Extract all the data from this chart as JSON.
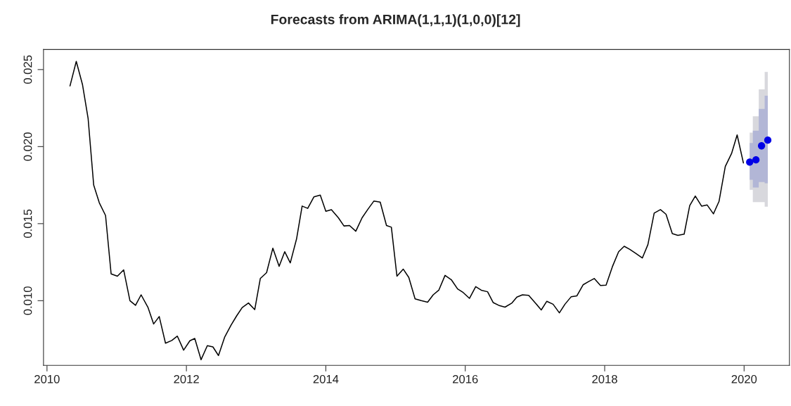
{
  "chart_data": {
    "type": "line",
    "title": "Forecasts from ARIMA(1,1,1)(1,0,0)[12]",
    "xlim": [
      2009.95,
      2020.65
    ],
    "xticks": [
      2010,
      2012,
      2014,
      2016,
      2018,
      2020
    ],
    "ylim": [
      0.0058,
      0.0263
    ],
    "yticks": [
      {
        "value": 0.01,
        "label": "0.010"
      },
      0.015,
      {
        "value": 0.02,
        "label": "0.020"
      },
      0.025
    ],
    "grid": false,
    "series": [
      {
        "color": "#000000",
        "marker": "none",
        "line_style": "solid",
        "x": [
          2010.33,
          2010.42,
          2010.51,
          2010.59,
          2010.67,
          2010.75,
          2010.84,
          2010.92,
          2011.01,
          2011.1,
          2011.19,
          2011.27,
          2011.35,
          2011.45,
          2011.53,
          2011.61,
          2011.7,
          2011.79,
          2011.87,
          2011.96,
          2012.05,
          2012.12,
          2012.21,
          2012.3,
          2012.38,
          2012.46,
          2012.55,
          2012.64,
          2012.72,
          2012.8,
          2012.89,
          2012.98,
          2013.06,
          2013.15,
          2013.24,
          2013.33,
          2013.41,
          2013.49,
          2013.58,
          2013.66,
          2013.74,
          2013.83,
          2013.92,
          2014.0,
          2014.08,
          2014.18,
          2014.26,
          2014.34,
          2014.43,
          2014.52,
          2014.6,
          2014.69,
          2014.78,
          2014.87,
          2014.94,
          2015.02,
          2015.11,
          2015.19,
          2015.28,
          2015.37,
          2015.46,
          2015.54,
          2015.62,
          2015.71,
          2015.8,
          2015.89,
          2015.97,
          2016.06,
          2016.15,
          2016.23,
          2016.32,
          2016.4,
          2016.48,
          2016.57,
          2016.67,
          2016.74,
          2016.82,
          2016.91,
          2017.0,
          2017.09,
          2017.17,
          2017.26,
          2017.35,
          2017.43,
          2017.52,
          2017.6,
          2017.69,
          2017.77,
          2017.85,
          2017.94,
          2018.02,
          2018.11,
          2018.2,
          2018.28,
          2018.36,
          2018.45,
          2018.54,
          2018.62,
          2018.71,
          2018.8,
          2018.88,
          2018.97,
          2019.05,
          2019.14,
          2019.22,
          2019.3,
          2019.39,
          2019.47,
          2019.56,
          2019.64,
          2019.73,
          2019.82,
          2019.9,
          2019.99
        ],
        "values": [
          0.02394,
          0.02553,
          0.02401,
          0.02182,
          0.0175,
          0.01636,
          0.01553,
          0.01174,
          0.01159,
          0.012,
          0.01,
          0.0097,
          0.01038,
          0.00955,
          0.00849,
          0.00897,
          0.00724,
          0.00742,
          0.0077,
          0.00679,
          0.0074,
          0.00755,
          0.00617,
          0.00708,
          0.007,
          0.00644,
          0.00765,
          0.00841,
          0.00901,
          0.00955,
          0.00985,
          0.00942,
          0.01144,
          0.01182,
          0.01341,
          0.01223,
          0.01318,
          0.01245,
          0.01401,
          0.01614,
          0.01599,
          0.01674,
          0.01685,
          0.0158,
          0.01591,
          0.01538,
          0.01485,
          0.01488,
          0.01451,
          0.01538,
          0.01591,
          0.01647,
          0.0164,
          0.01488,
          0.01477,
          0.01159,
          0.01205,
          0.01151,
          0.01012,
          0.01,
          0.0099,
          0.01038,
          0.01068,
          0.01164,
          0.01136,
          0.01076,
          0.01053,
          0.01015,
          0.01091,
          0.01068,
          0.01058,
          0.00988,
          0.0097,
          0.00958,
          0.00985,
          0.01023,
          0.01038,
          0.01035,
          0.00988,
          0.0094,
          0.00996,
          0.00977,
          0.00921,
          0.00977,
          0.01026,
          0.01031,
          0.01103,
          0.01124,
          0.01144,
          0.01099,
          0.01101,
          0.0122,
          0.01318,
          0.01353,
          0.01333,
          0.01306,
          0.01277,
          0.01364,
          0.01568,
          0.01591,
          0.01561,
          0.01435,
          0.01424,
          0.01432,
          0.01617,
          0.01679,
          0.01614,
          0.01621,
          0.01564,
          0.01644,
          0.01871,
          0.01955,
          0.02076,
          0.01894
        ]
      },
      {
        "type": "area",
        "color": "#d8d8dd",
        "x": [
          2020.08,
          2020.17,
          2020.25,
          2020.34
        ],
        "values": [
          null,
          null,
          null,
          null
        ],
        "lower": [
          0.0172,
          0.0164,
          0.0164,
          0.0161
        ],
        "upper": [
          0.02091,
          0.02197,
          0.02371,
          0.02485
        ]
      },
      {
        "type": "area",
        "color": "#b2b6d6",
        "x": [
          2020.08,
          2020.17,
          2020.25,
          2020.34
        ],
        "values": [
          null,
          null,
          null,
          null
        ],
        "lower": [
          0.01785,
          0.01735,
          0.0177,
          0.01762
        ],
        "upper": [
          0.02023,
          0.02103,
          0.02245,
          0.0233
        ]
      },
      {
        "type": "scatter",
        "color": "#0000e6",
        "marker": "circle",
        "x": [
          2020.08,
          2020.17,
          2020.25,
          2020.34
        ],
        "values": [
          0.01899,
          0.01914,
          0.02005,
          0.02042
        ]
      }
    ]
  }
}
